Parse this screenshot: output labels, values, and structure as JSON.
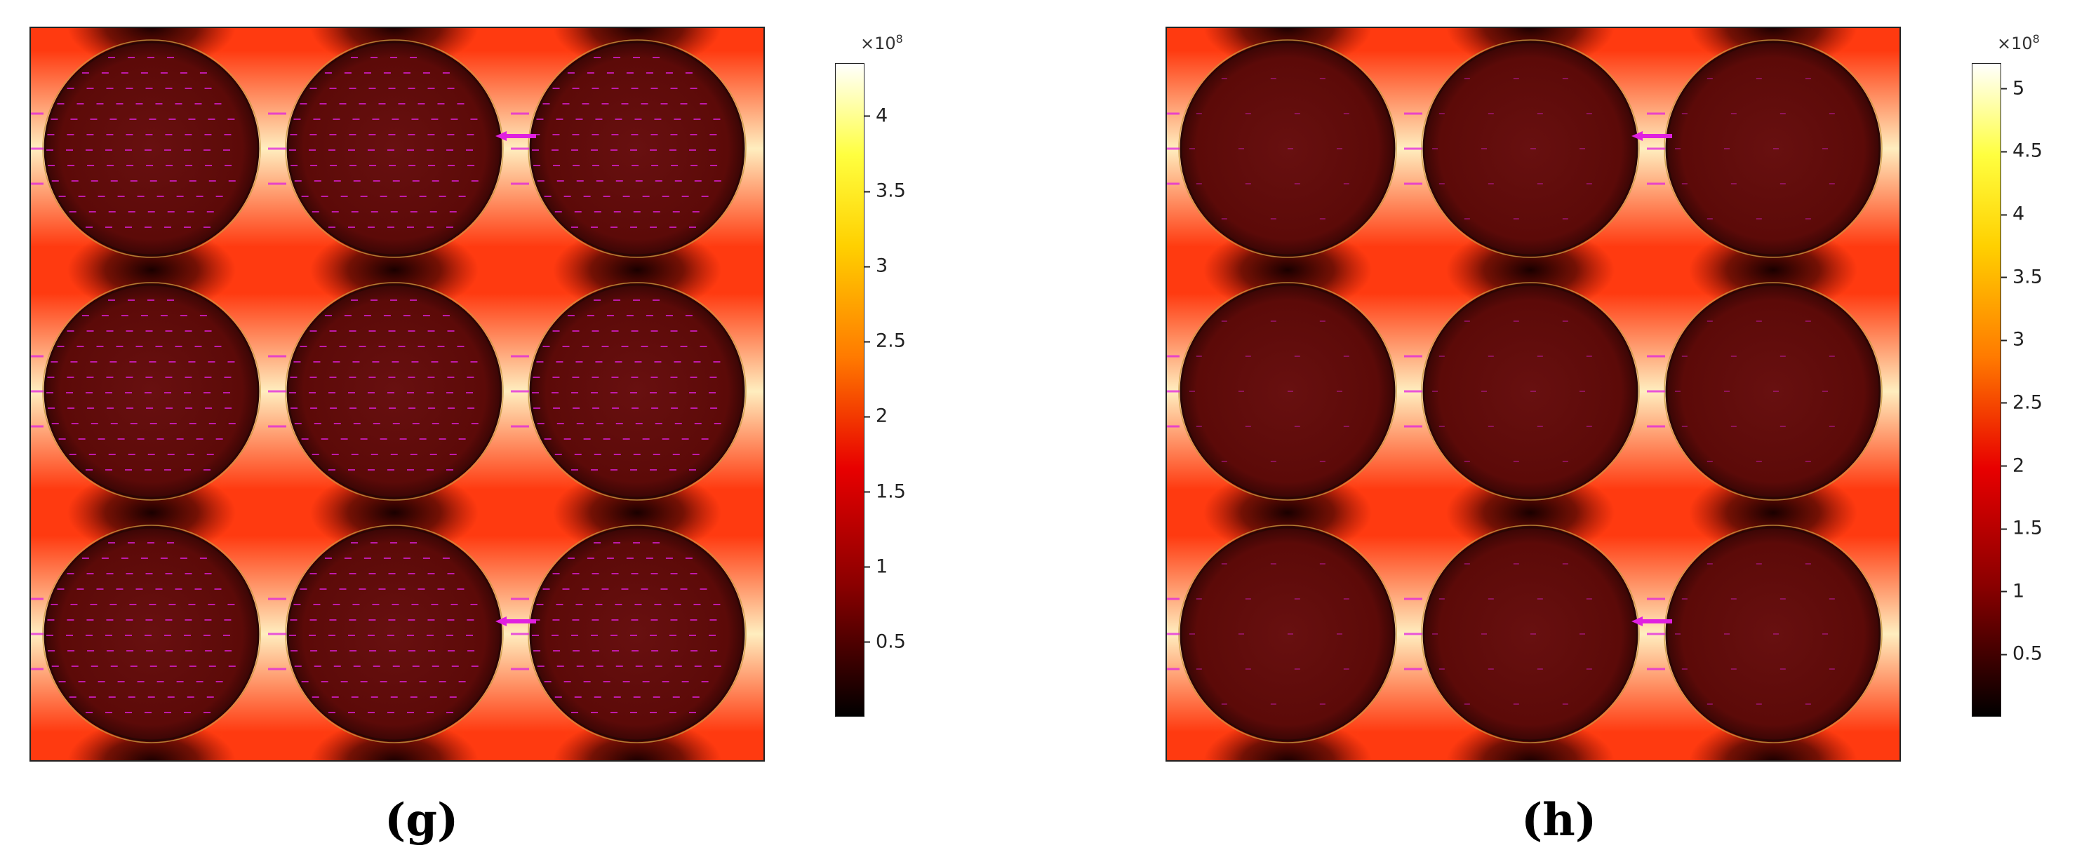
{
  "panels": [
    {
      "id": "g",
      "caption": "(g)",
      "colorbar": {
        "multiplier_base": "×10",
        "multiplier_exp": "8",
        "min": 0,
        "max": 4.35,
        "ticks": [
          "0.5",
          "1",
          "1.5",
          "2",
          "2.5",
          "3",
          "3.5",
          "4"
        ]
      },
      "arrow_density": "high"
    },
    {
      "id": "h",
      "caption": "(h)",
      "colorbar": {
        "multiplier_base": "×10",
        "multiplier_exp": "8",
        "min": 0,
        "max": 5.2,
        "ticks": [
          "0.5",
          "1",
          "1.5",
          "2",
          "2.5",
          "3",
          "3.5",
          "4",
          "4.5",
          "5"
        ]
      },
      "arrow_density": "low"
    }
  ],
  "colors": {
    "particle": "#5c0a08",
    "field_high": "#fff7c8",
    "field_mid": "#ff3a10",
    "field_low": "#1a0000",
    "arrow": "#e020e0"
  },
  "colormap": "hot"
}
